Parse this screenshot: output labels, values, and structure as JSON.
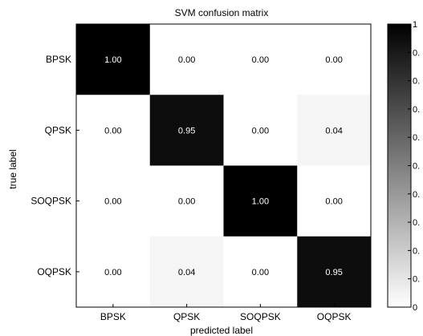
{
  "chart_data": {
    "type": "heatmap",
    "title": "SVM confusion matrix",
    "xlabel": "predicted label",
    "ylabel": "true label",
    "x_categories": [
      "BPSK",
      "QPSK",
      "SOQPSK",
      "OQPSK"
    ],
    "y_categories": [
      "BPSK",
      "QPSK",
      "SOQPSK",
      "OQPSK"
    ],
    "values": [
      [
        1.0,
        0.0,
        0.0,
        0.0
      ],
      [
        0.0,
        0.95,
        0.0,
        0.04
      ],
      [
        0.0,
        0.0,
        1.0,
        0.0
      ],
      [
        0.0,
        0.04,
        0.0,
        0.95
      ]
    ],
    "cell_labels": [
      [
        "1.00",
        "0.00",
        "0.00",
        "0.00"
      ],
      [
        "0.00",
        "0.95",
        "0.00",
        "0.04"
      ],
      [
        "0.00",
        "0.00",
        "1.00",
        "0.00"
      ],
      [
        "0.00",
        "0.04",
        "0.00",
        "0.95"
      ]
    ],
    "colorbar": {
      "range": [
        0,
        1
      ],
      "colormap": "white-to-black",
      "tick_labels": [
        "1",
        "0.",
        "0.",
        "0.",
        "0.",
        "0.",
        "0.",
        "0.",
        "0.",
        "0.",
        "0"
      ]
    },
    "colors": {
      "low": "#ffffff",
      "high": "#000000",
      "light_text": "#ffffff",
      "dark_text": "#000000"
    }
  }
}
